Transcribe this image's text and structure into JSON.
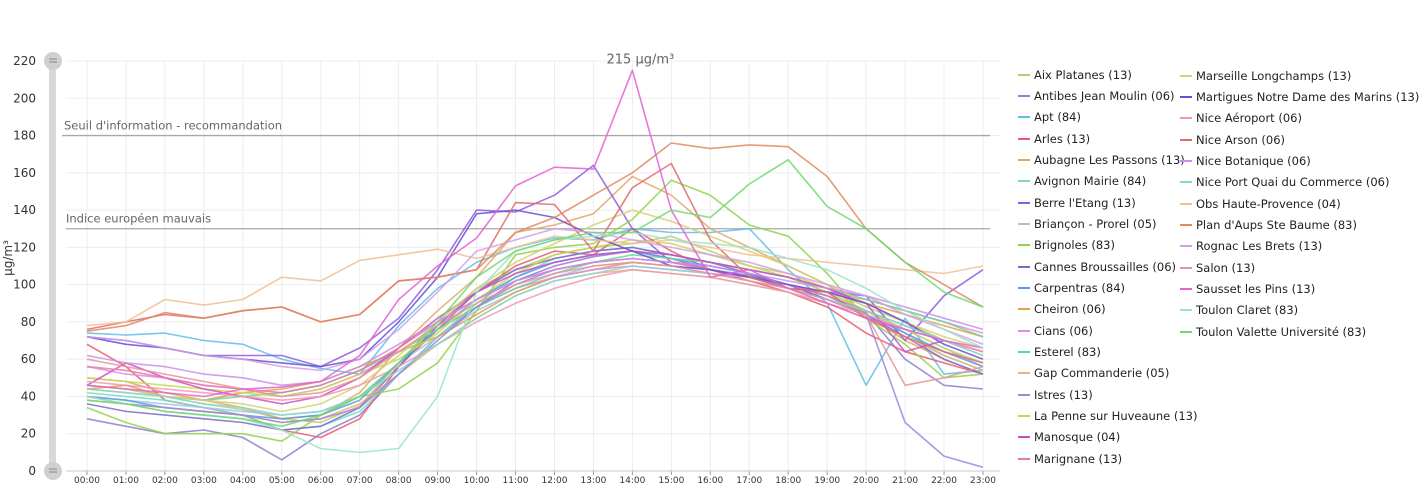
{
  "chart_data": {
    "type": "line",
    "ylabel": "µg/m³",
    "ylim": [
      0,
      220
    ],
    "yticks": [
      0,
      20,
      40,
      60,
      80,
      100,
      120,
      140,
      160,
      180,
      200,
      220
    ],
    "x": [
      "00:00",
      "01:00",
      "02:00",
      "03:00",
      "04:00",
      "05:00",
      "06:00",
      "07:00",
      "08:00",
      "09:00",
      "10:00",
      "11:00",
      "12:00",
      "13:00",
      "14:00",
      "15:00",
      "16:00",
      "17:00",
      "18:00",
      "19:00",
      "20:00",
      "21:00",
      "22:00",
      "23:00"
    ],
    "legend_position": "right",
    "thresholds": [
      {
        "label": "Seuil d'information - recommandation",
        "value": 180
      },
      {
        "label": "Indice européen mauvais",
        "value": 130
      }
    ],
    "peak_annotation": {
      "text": "215 µg/m³",
      "x": "14:00",
      "y": 215
    },
    "series": [
      {
        "name": "Aix Platanes (13)",
        "color": "#c3c86e",
        "values": [
          44,
          42,
          40,
          36,
          33,
          28,
          26,
          35,
          58,
          78,
          98,
          108,
          116,
          120,
          122,
          126,
          118,
          110,
          106,
          98,
          88,
          80,
          70,
          62
        ]
      },
      {
        "name": "Antibes Jean Moulin (06)",
        "color": "#8a7fd0",
        "values": [
          28,
          24,
          20,
          22,
          18,
          6,
          20,
          30,
          52,
          72,
          88,
          102,
          110,
          115,
          118,
          114,
          108,
          105,
          100,
          92,
          85,
          60,
          46,
          44
        ]
      },
      {
        "name": "Apt (84)",
        "color": "#5fc0e8",
        "values": [
          74,
          73,
          74,
          70,
          68,
          60,
          55,
          52,
          78,
          98,
          112,
          120,
          125,
          124,
          130,
          128,
          128,
          130,
          108,
          90,
          46,
          82,
          52,
          54
        ]
      },
      {
        "name": "Arles (13)",
        "color": "#e85a6e",
        "values": [
          68,
          56,
          38,
          34,
          30,
          22,
          18,
          28,
          56,
          76,
          96,
          110,
          118,
          116,
          130,
          118,
          108,
          102,
          96,
          88,
          74,
          64,
          58,
          52
        ]
      },
      {
        "name": "Aubagne Les Passons (13)",
        "color": "#e0a868",
        "values": [
          50,
          48,
          42,
          38,
          34,
          28,
          30,
          42,
          66,
          86,
          104,
          128,
          132,
          138,
          158,
          148,
          130,
          120,
          110,
          100,
          84,
          70,
          60,
          52
        ]
      },
      {
        "name": "Avignon Mairie (84)",
        "color": "#78dcc0",
        "values": [
          42,
          40,
          38,
          34,
          30,
          22,
          24,
          32,
          52,
          72,
          90,
          104,
          114,
          118,
          120,
          116,
          112,
          108,
          104,
          96,
          86,
          74,
          62,
          54
        ]
      },
      {
        "name": "Berre l'Etang (13)",
        "color": "#8e5ce0",
        "values": [
          72,
          70,
          66,
          62,
          62,
          62,
          56,
          66,
          82,
          108,
          140,
          139,
          148,
          164,
          130,
          112,
          110,
          106,
          98,
          96,
          94,
          70,
          94,
          108
        ]
      },
      {
        "name": "Briançon - Prorel (05)",
        "color": "#9cc4ec",
        "values": [
          40,
          38,
          36,
          34,
          32,
          30,
          32,
          40,
          58,
          72,
          86,
          96,
          104,
          110,
          112,
          110,
          106,
          104,
          100,
          94,
          86,
          76,
          66,
          56
        ]
      },
      {
        "name": "Brignoles (83)",
        "color": "#8ed44c",
        "values": [
          34,
          26,
          20,
          20,
          20,
          16,
          30,
          40,
          44,
          58,
          86,
          116,
          120,
          122,
          135,
          156,
          148,
          132,
          126,
          106,
          82,
          68,
          50,
          52
        ]
      },
      {
        "name": "Cannes Broussailles (06)",
        "color": "#7a6acc",
        "values": [
          36,
          32,
          30,
          28,
          26,
          22,
          24,
          34,
          56,
          78,
          96,
          108,
          114,
          118,
          120,
          116,
          112,
          106,
          100,
          92,
          84,
          72,
          60,
          52
        ]
      },
      {
        "name": "Carpentras (84)",
        "color": "#5a9ae0",
        "values": [
          40,
          38,
          34,
          32,
          30,
          28,
          30,
          38,
          58,
          76,
          92,
          104,
          112,
          116,
          118,
          114,
          110,
          106,
          100,
          94,
          84,
          74,
          64,
          56
        ]
      },
      {
        "name": "Cheiron (06)",
        "color": "#e2a04a",
        "values": [
          44,
          46,
          40,
          38,
          42,
          44,
          48,
          56,
          64,
          72,
          84,
          96,
          104,
          108,
          112,
          110,
          108,
          104,
          100,
          96,
          90,
          84,
          78,
          72
        ]
      },
      {
        "name": "Cians (06)",
        "color": "#dc8ce0",
        "values": [
          56,
          52,
          50,
          46,
          44,
          40,
          44,
          52,
          64,
          76,
          88,
          98,
          104,
          108,
          110,
          108,
          106,
          104,
          100,
          96,
          92,
          86,
          80,
          74
        ]
      },
      {
        "name": "Esterel (83)",
        "color": "#6cd494",
        "values": [
          46,
          44,
          40,
          38,
          40,
          42,
          46,
          54,
          64,
          76,
          88,
          98,
          106,
          112,
          116,
          114,
          112,
          108,
          104,
          98,
          92,
          86,
          80,
          72
        ]
      },
      {
        "name": "Gap Commanderie (05)",
        "color": "#ecb27a",
        "values": [
          38,
          36,
          34,
          32,
          30,
          26,
          28,
          36,
          52,
          68,
          82,
          94,
          102,
          106,
          108,
          106,
          104,
          100,
          96,
          90,
          82,
          72,
          62,
          54
        ]
      },
      {
        "name": "Istres (13)",
        "color": "#9a88da",
        "values": [
          40,
          36,
          34,
          32,
          30,
          26,
          28,
          34,
          52,
          70,
          88,
          100,
          108,
          112,
          114,
          112,
          108,
          104,
          98,
          92,
          84,
          26,
          8,
          2
        ]
      },
      {
        "name": "La Penne sur Huveaune (13)",
        "color": "#c4d858",
        "values": [
          50,
          48,
          46,
          44,
          42,
          40,
          44,
          52,
          60,
          74,
          92,
          106,
          116,
          120,
          124,
          122,
          116,
          110,
          104,
          96,
          86,
          76,
          66,
          58
        ]
      },
      {
        "name": "Manosque (04)",
        "color": "#d04cc4",
        "values": [
          46,
          58,
          50,
          44,
          40,
          36,
          40,
          50,
          66,
          82,
          96,
          106,
          112,
          116,
          118,
          116,
          112,
          108,
          104,
          98,
          90,
          64,
          70,
          64
        ]
      },
      {
        "name": "Marignane (13)",
        "color": "#e67aa8",
        "values": [
          56,
          54,
          50,
          46,
          44,
          42,
          46,
          54,
          66,
          80,
          92,
          102,
          108,
          112,
          114,
          112,
          108,
          104,
          100,
          94,
          86,
          78,
          70,
          64
        ]
      },
      {
        "name": "Marseille Longchamps (13)",
        "color": "#d6d072",
        "values": [
          46,
          44,
          40,
          38,
          36,
          32,
          36,
          46,
          62,
          80,
          98,
          112,
          122,
          132,
          140,
          134,
          126,
          118,
          110,
          100,
          90,
          80,
          72,
          66
        ]
      },
      {
        "name": "Martigues Notre Dame des Marins (13)",
        "color": "#6a4ed6",
        "values": [
          72,
          68,
          66,
          62,
          60,
          58,
          56,
          60,
          80,
          104,
          138,
          140,
          136,
          126,
          118,
          110,
          108,
          104,
          100,
          96,
          90,
          80,
          68,
          60
        ]
      },
      {
        "name": "Nice Aéroport (06)",
        "color": "#ee9ab0",
        "values": [
          48,
          46,
          44,
          42,
          40,
          38,
          40,
          46,
          56,
          68,
          80,
          90,
          98,
          104,
          108,
          106,
          104,
          100,
          96,
          90,
          84,
          76,
          70,
          64
        ]
      },
      {
        "name": "Nice Arson (06)",
        "color": "#e06a6a",
        "values": [
          76,
          80,
          84,
          82,
          86,
          88,
          80,
          84,
          102,
          104,
          108,
          144,
          143,
          118,
          152,
          165,
          124,
          104,
          98,
          96,
          82,
          72,
          64,
          58
        ]
      },
      {
        "name": "Nice Botanique (06)",
        "color": "#c890e8",
        "values": [
          62,
          58,
          56,
          52,
          50,
          46,
          48,
          56,
          68,
          80,
          92,
          102,
          108,
          112,
          114,
          112,
          110,
          106,
          102,
          98,
          94,
          88,
          82,
          76
        ]
      },
      {
        "name": "Nice Port Quai du Commerce (06)",
        "color": "#82d8d4",
        "values": [
          44,
          42,
          40,
          36,
          34,
          30,
          32,
          40,
          54,
          68,
          82,
          94,
          102,
          106,
          110,
          108,
          106,
          102,
          98,
          92,
          86,
          78,
          70,
          62
        ]
      },
      {
        "name": "Obs Haute-Provence (04)",
        "color": "#f0c090",
        "values": [
          78,
          80,
          92,
          89,
          92,
          104,
          102,
          113,
          116,
          119,
          114,
          120,
          126,
          124,
          122,
          124,
          120,
          116,
          114,
          112,
          110,
          108,
          106,
          110
        ]
      },
      {
        "name": "Plan d'Aups Ste Baume (83)",
        "color": "#e08a62",
        "values": [
          75,
          78,
          85,
          82,
          86,
          88,
          80,
          84,
          102,
          104,
          108,
          128,
          136,
          148,
          160,
          176,
          173,
          175,
          174,
          158,
          130,
          112,
          100,
          88
        ]
      },
      {
        "name": "Rognac Les Brets (13)",
        "color": "#d4a0e4",
        "values": [
          72,
          70,
          66,
          62,
          60,
          56,
          54,
          60,
          76,
          96,
          118,
          124,
          130,
          128,
          124,
          120,
          116,
          112,
          106,
          100,
          94,
          84,
          76,
          68
        ]
      },
      {
        "name": "Salon (13)",
        "color": "#e89498",
        "values": [
          60,
          56,
          52,
          48,
          44,
          40,
          42,
          50,
          64,
          78,
          90,
          100,
          106,
          110,
          112,
          110,
          106,
          102,
          98,
          92,
          84,
          46,
          50,
          56
        ]
      },
      {
        "name": "Sausset les Pins (13)",
        "color": "#e462d2",
        "values": [
          46,
          44,
          42,
          40,
          44,
          45,
          48,
          62,
          92,
          110,
          125,
          153,
          163,
          162,
          215,
          140,
          104,
          108,
          98,
          90,
          82,
          76,
          70,
          66
        ]
      },
      {
        "name": "Toulon Claret (83)",
        "color": "#9ce4c8",
        "values": [
          40,
          36,
          32,
          30,
          28,
          22,
          12,
          10,
          12,
          40,
          96,
          118,
          124,
          126,
          128,
          124,
          122,
          120,
          114,
          108,
          98,
          86,
          76,
          66
        ]
      },
      {
        "name": "Toulon Valette Université (83)",
        "color": "#6cda6c",
        "values": [
          38,
          36,
          32,
          30,
          28,
          24,
          30,
          40,
          58,
          80,
          104,
          118,
          124,
          128,
          128,
          140,
          136,
          154,
          167,
          142,
          130,
          112,
          96,
          88
        ]
      }
    ]
  }
}
